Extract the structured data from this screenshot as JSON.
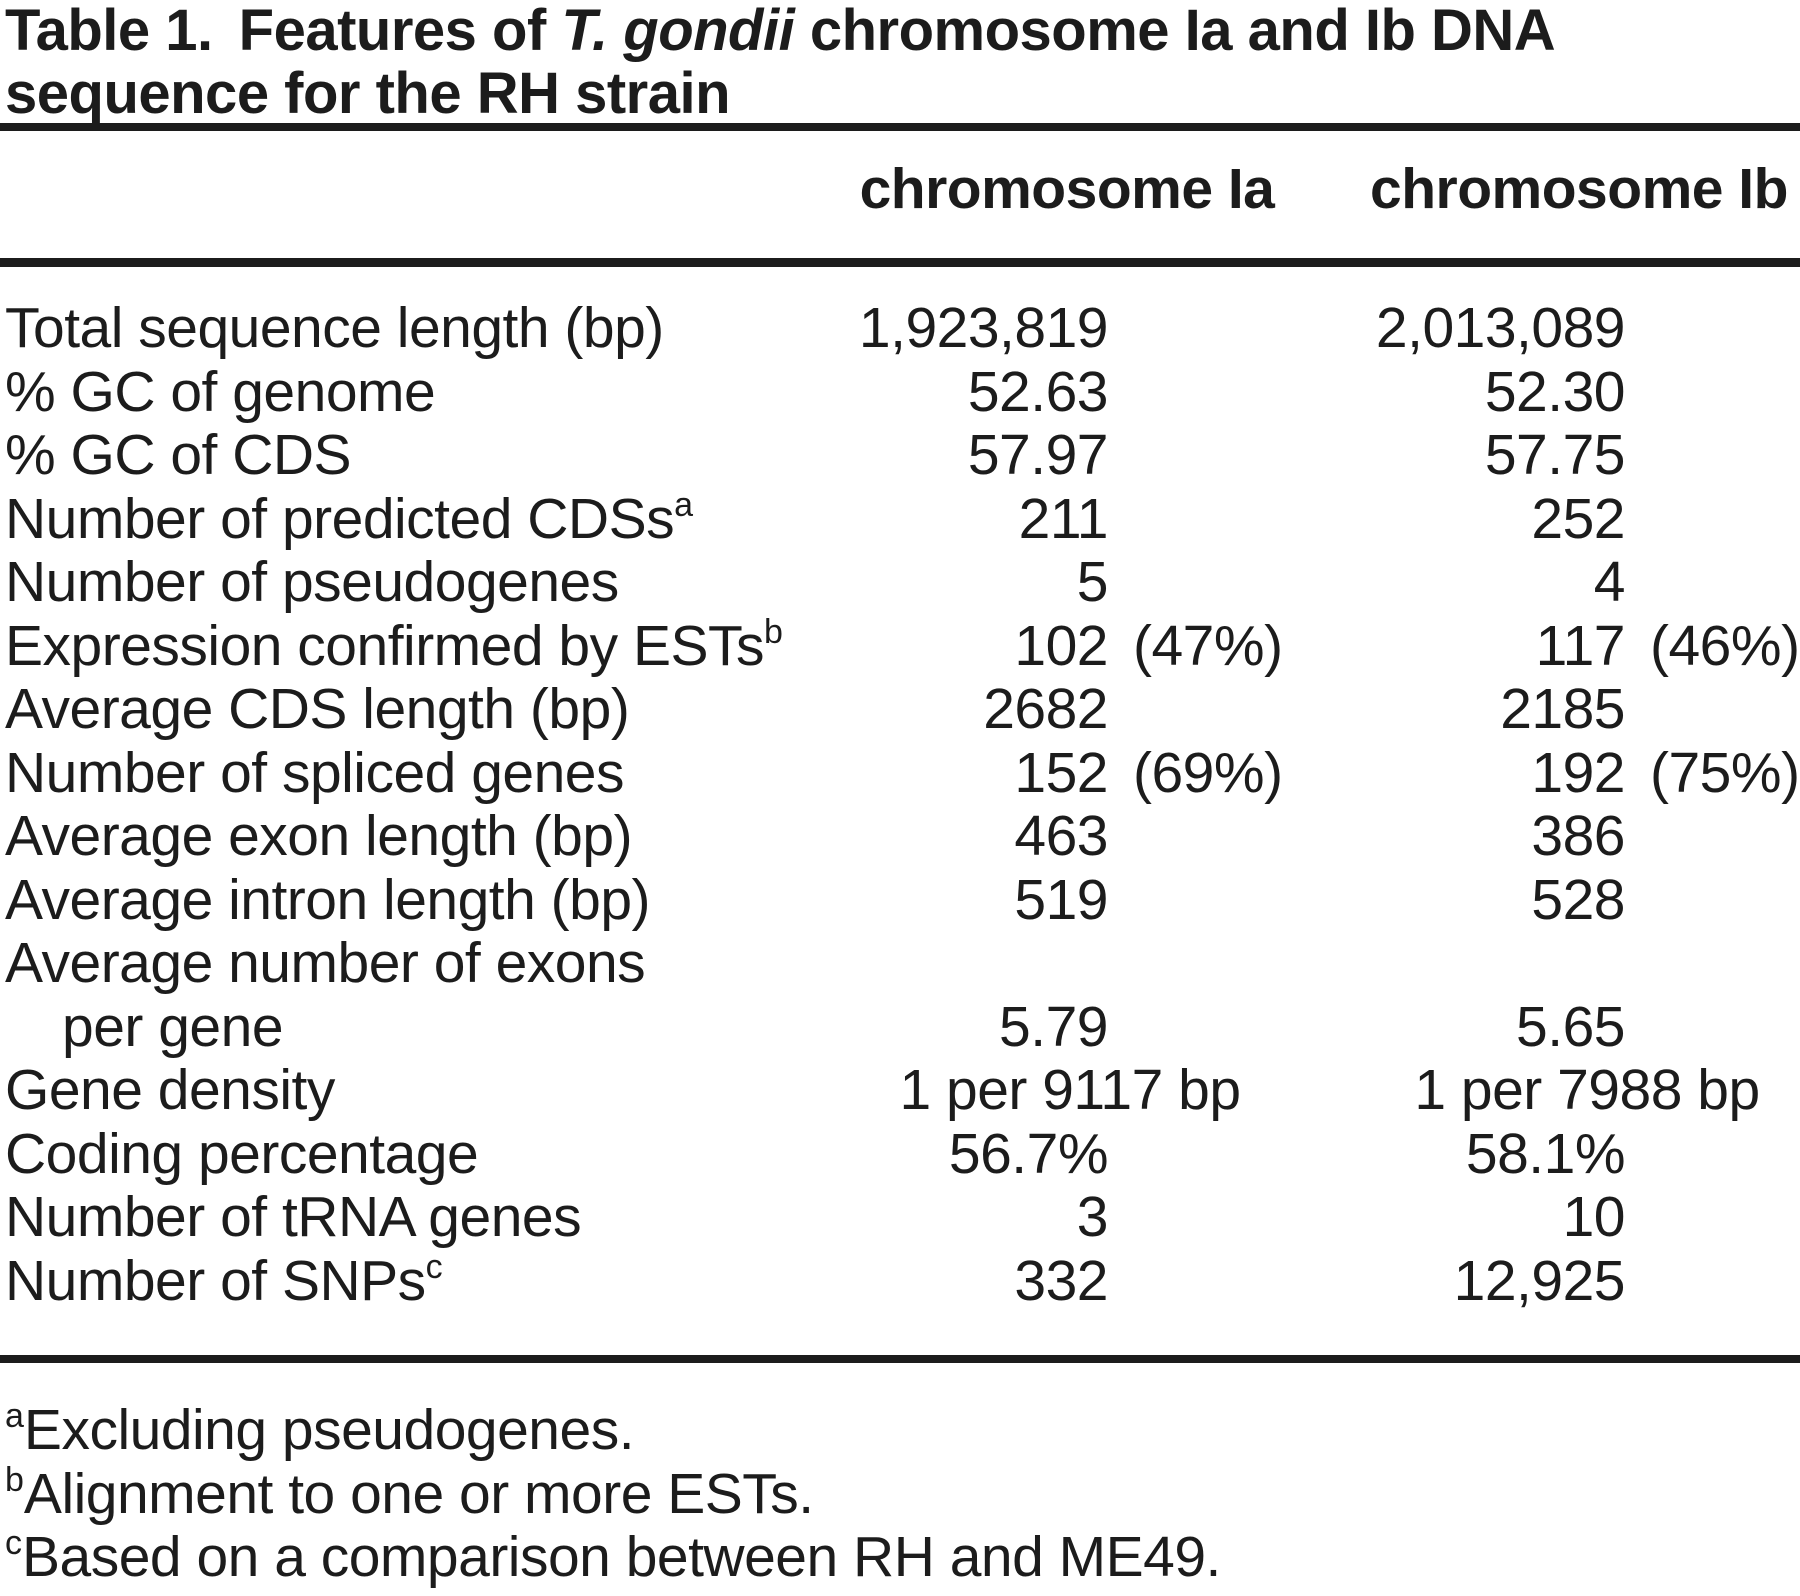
{
  "title": {
    "label": "Table 1.",
    "rest_before": "Features of ",
    "species": "T. gondii",
    "rest_after": " chromosome Ia and Ib DNA",
    "line2": "sequence for the RH strain"
  },
  "columns": [
    {
      "label": "chromosome Ia"
    },
    {
      "label": "chromosome Ib"
    }
  ],
  "rows": [
    {
      "label": "Total sequence length (bp)",
      "cells": [
        {
          "main": "1,923,819"
        },
        {
          "main": "2,013,089"
        }
      ]
    },
    {
      "label": "% GC of genome",
      "cells": [
        {
          "main": "52.63"
        },
        {
          "main": "52.30"
        }
      ]
    },
    {
      "label": "% GC of CDS",
      "cells": [
        {
          "main": "57.97"
        },
        {
          "main": "57.75"
        }
      ]
    },
    {
      "label": "Number of predicted CDSs",
      "sup": "a",
      "cells": [
        {
          "main": "211"
        },
        {
          "main": "252"
        }
      ]
    },
    {
      "label": "Number of pseudogenes",
      "cells": [
        {
          "main": "5"
        },
        {
          "main": "4"
        }
      ]
    },
    {
      "label": "Expression confirmed by ESTs",
      "sup": "b",
      "cells": [
        {
          "main": "102",
          "suffix": "(47%)"
        },
        {
          "main": "117",
          "suffix": "(46%)"
        }
      ]
    },
    {
      "label": "Average CDS length (bp)",
      "cells": [
        {
          "main": "2682"
        },
        {
          "main": "2185"
        }
      ]
    },
    {
      "label": "Number of spliced genes",
      "cells": [
        {
          "main": "152",
          "suffix": "(69%)"
        },
        {
          "main": "192",
          "suffix": "(75%)"
        }
      ]
    },
    {
      "label": "Average exon length (bp)",
      "cells": [
        {
          "main": "463"
        },
        {
          "main": "386"
        }
      ]
    },
    {
      "label": "Average intron length (bp)",
      "cells": [
        {
          "main": "519"
        },
        {
          "main": "528"
        }
      ]
    },
    {
      "label": "Average number of exons",
      "cells": []
    },
    {
      "label": "per gene",
      "indent": true,
      "cells": [
        {
          "main": "5.79"
        },
        {
          "main": "5.65"
        }
      ]
    },
    {
      "label": "Gene density",
      "center": true,
      "cells": [
        {
          "main": "1 per 9117 bp"
        },
        {
          "main": "1 per 7988 bp"
        }
      ]
    },
    {
      "label": "Coding percentage",
      "cells": [
        {
          "main": "56.7%"
        },
        {
          "main": "58.1%"
        }
      ]
    },
    {
      "label": "Number of tRNA genes",
      "cells": [
        {
          "main": "3"
        },
        {
          "main": "10"
        }
      ]
    },
    {
      "label": "Number of SNPs",
      "sup": "c",
      "cells": [
        {
          "main": "332"
        },
        {
          "main": "12,925"
        }
      ]
    }
  ],
  "footnotes": [
    {
      "marker": "a",
      "text": "Excluding pseudogenes."
    },
    {
      "marker": "b",
      "text": "Alignment to one or more ESTs."
    },
    {
      "marker": "c",
      "text": "Based on a comparison between RH and ME49."
    }
  ],
  "colors": {
    "text": "#1c1c1c",
    "background": "#ffffff",
    "rule": "#1c1c1c"
  }
}
